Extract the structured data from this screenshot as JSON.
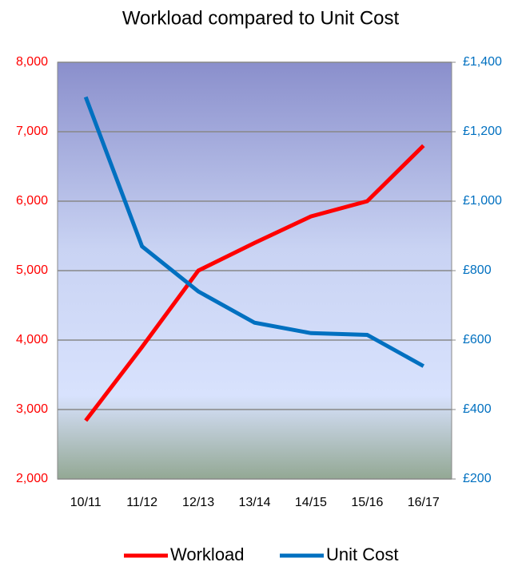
{
  "chart_data": {
    "type": "line",
    "title": "Workload compared to Unit Cost",
    "categories": [
      "10/11",
      "11/12",
      "12/13",
      "13/14",
      "14/15",
      "15/16",
      "16/17"
    ],
    "series": [
      {
        "name": "Workload",
        "color": "#ff0000",
        "values": [
          2840,
          3900,
          5000,
          5400,
          5780,
          6000,
          6800
        ]
      },
      {
        "name": "Unit Cost",
        "color": "#0070c0",
        "axis": "y2",
        "values": [
          1300,
          870,
          740,
          650,
          620,
          615,
          525
        ]
      }
    ],
    "ylim": [
      2000,
      8000
    ],
    "yticks": [
      {
        "value": 2000,
        "label": "2,000"
      },
      {
        "value": 3000,
        "label": "3,000"
      },
      {
        "value": 4000,
        "label": "4,000"
      },
      {
        "value": 5000,
        "label": "5,000"
      },
      {
        "value": 6000,
        "label": "6,000"
      },
      {
        "value": 7000,
        "label": "7,000"
      },
      {
        "value": 8000,
        "label": "8,000"
      }
    ],
    "y2lim": [
      200,
      1400
    ],
    "y2ticks": [
      {
        "value": 200,
        "label": "£200"
      },
      {
        "value": 400,
        "label": "£400"
      },
      {
        "value": 600,
        "label": "£600"
      },
      {
        "value": 800,
        "label": "£800"
      },
      {
        "value": 1000,
        "label": "£1,000"
      },
      {
        "value": 1200,
        "label": "£1,200"
      },
      {
        "value": 1400,
        "label": "£1,400"
      }
    ],
    "grid": true,
    "legend": "bottom",
    "ytick_color": "#ff0000",
    "y2tick_color": "#0070c0"
  }
}
